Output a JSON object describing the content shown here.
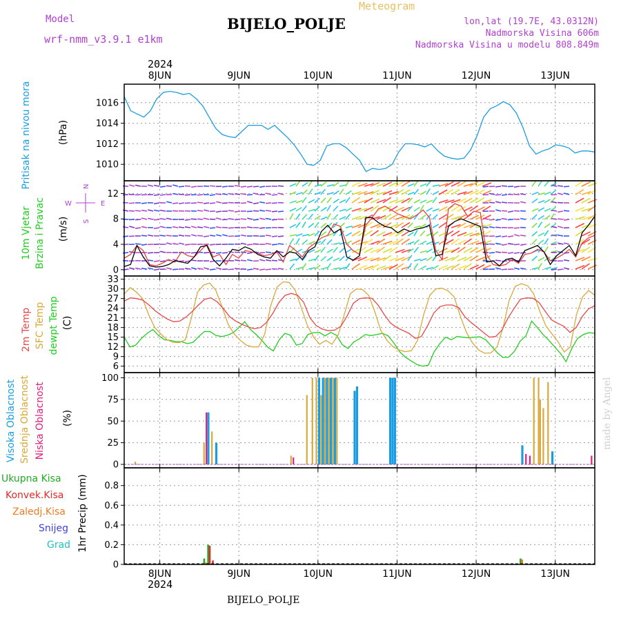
{
  "header": {
    "model_label": "Model",
    "model_name": "wrf-nmm_v3.9.1  e1km",
    "meteogram": "Meteogram",
    "station": "BIJELO_POLJE",
    "lonlat": "lon,lat (19.7E, 43.0312N)",
    "altitude": "Nadmorska Visina 606m",
    "model_altitude": "Nadmorska Visina u modelu 808.849m",
    "year": "2024"
  },
  "footer": {
    "station": "BIJELO_POLJE",
    "year": "2024",
    "credit": "made by Angel"
  },
  "days": [
    "8JUN",
    "9JUN",
    "10JUN",
    "11JUN",
    "12JUN",
    "13JUN"
  ],
  "colors": {
    "pressure": "#1a9de0",
    "temp": "#e84848",
    "sfc": "#d8a83a",
    "dew": "#22cc22",
    "high": "#1a9de0",
    "mid": "#d8a83a",
    "low": "#e0207a",
    "total": "#22aa22",
    "conv": "#e02a2a",
    "strat": "#f07b20",
    "snow": "#4040e0",
    "grad": "#20c0c0",
    "wind_title": "#22cc22",
    "wind_dir": "#b040d0"
  },
  "chart_data": [
    {
      "type": "line",
      "ylabel": [
        "Pritisak na nivou mora",
        "(hPa)"
      ],
      "yticks": [
        1010,
        1012,
        1014,
        1016
      ],
      "ylim": [
        1008.4,
        1017.8
      ],
      "x_start_day": 7.55,
      "x_end_day": 13.5,
      "series": [
        {
          "values": [
            1016.6,
            1015.2,
            1014.9,
            1014.6,
            1015.2,
            1016.4,
            1017.0,
            1017.1,
            1017.0,
            1016.8,
            1016.9,
            1016.4,
            1015.7,
            1014.6,
            1013.5,
            1012.9,
            1012.7,
            1012.6,
            1013.2,
            1013.8,
            1013.8,
            1013.8,
            1013.4,
            1013.8,
            1013.2,
            1012.6,
            1011.9,
            1011.0,
            1010.0,
            1009.9,
            1010.4,
            1011.8,
            1012.0,
            1012.0,
            1011.6,
            1011.0,
            1010.4,
            1009.3,
            1009.6,
            1009.5,
            1009.6,
            1010.0,
            1011.2,
            1012.0,
            1012.0,
            1011.9,
            1011.7,
            1012.0,
            1011.3,
            1010.8,
            1010.6,
            1010.5,
            1010.6,
            1011.4,
            1012.8,
            1014.6,
            1015.4,
            1015.7,
            1016.1,
            1015.8,
            1015.0,
            1013.6,
            1011.8,
            1011.0,
            1011.3,
            1011.5,
            1011.9,
            1011.8,
            1011.6,
            1011.1,
            1011.3,
            1011.3,
            1011.2
          ]
        }
      ]
    },
    {
      "type": "line",
      "ylabel": [
        "10m Vjetar",
        "Brzina i Pravac",
        "(m/s)"
      ],
      "yticks": [
        0,
        4,
        8,
        12
      ],
      "ylim": [
        -1,
        14
      ],
      "compass": {
        "n": "N",
        "s": "S",
        "e": "E",
        "w": "W"
      },
      "series": [
        {
          "values": [
            0.5,
            0.8,
            3.8,
            2.0,
            0.6,
            0.4,
            0.5,
            0.8,
            1.4,
            1.2,
            1.0,
            2.0,
            3.6,
            3.8,
            1.6,
            0.6,
            1.8,
            3.2,
            3.0,
            3.6,
            3.2,
            2.4,
            2.0,
            1.8,
            3.0,
            2.0,
            2.8,
            2.6,
            1.6,
            3.0,
            3.6,
            6.0,
            7.0,
            5.8,
            6.4,
            2.0,
            1.5,
            2.2,
            8.2,
            8.2,
            7.4,
            6.8,
            6.6,
            5.8,
            6.4,
            6.0,
            6.4,
            6.6,
            7.0,
            2.2,
            2.4,
            6.8,
            7.6,
            8.0,
            7.6,
            7.2,
            6.8,
            1.2,
            1.4,
            0.6,
            1.6,
            1.8,
            1.2,
            3.0,
            3.4,
            3.8,
            2.8,
            0.8,
            2.2,
            3.0,
            3.8,
            2.2,
            5.8,
            7.0,
            8.4
          ]
        },
        {
          "values": [
            1.8,
            2.4,
            3.8,
            3.0,
            0.8,
            0.6,
            1.0,
            1.6,
            1.2,
            2.8,
            2.2,
            2.0,
            3.0,
            4.0,
            2.0,
            2.4,
            0.8,
            2.4,
            1.8,
            3.0,
            2.8,
            2.6,
            2.2,
            2.4,
            2.8,
            1.2,
            3.8,
            3.0,
            2.0,
            3.4,
            4.2,
            5.0,
            5.4,
            7.2,
            6.8,
            4.0,
            3.0,
            2.4,
            7.0,
            8.2,
            9.6,
            10.0,
            9.4,
            8.8,
            8.4,
            8.0,
            8.6,
            9.4,
            8.2,
            3.0,
            1.6,
            9.6,
            10.4,
            10.0,
            8.4,
            9.2,
            9.0,
            2.4,
            0.8,
            0.6,
            0.8,
            1.6,
            1.0,
            2.4,
            2.6,
            3.2,
            2.8,
            1.4,
            1.8,
            2.4,
            3.2,
            2.0,
            4.2,
            5.0,
            5.4
          ]
        }
      ]
    },
    {
      "type": "line",
      "ylabel": [
        "2m Temp",
        "SFC Temp",
        "dewpt Temp",
        "(C)"
      ],
      "yticks": [
        6,
        9,
        12,
        15,
        18,
        21,
        24,
        27,
        30,
        33
      ],
      "ylim": [
        4,
        34
      ],
      "series": [
        {
          "name": "2m Temp",
          "values": [
            26.2,
            27.2,
            27.0,
            26.5,
            25.0,
            23.2,
            21.8,
            20.6,
            19.8,
            20.0,
            21.3,
            23.0,
            25.0,
            26.8,
            27.2,
            26.0,
            23.9,
            21.4,
            20.0,
            19.0,
            18.2,
            17.6,
            18.0,
            19.6,
            22.4,
            25.8,
            28.0,
            28.6,
            28.0,
            25.8,
            21.0,
            18.6,
            17.5,
            17.0,
            17.2,
            18.4,
            21.6,
            25.5,
            27.0,
            27.2,
            27.1,
            25.0,
            22.0,
            19.4,
            18.0,
            17.1,
            16.2,
            14.6,
            15.2,
            18.6,
            22.5,
            24.5,
            25.0,
            25.0,
            24.2,
            21.4,
            19.6,
            18.1,
            16.5,
            15.0,
            15.2,
            17.2,
            21.0,
            24.0,
            26.8,
            27.2,
            27.1,
            25.8,
            23.0,
            20.4,
            19.3,
            18.4,
            16.5,
            18.0,
            21.5,
            23.8,
            24.8
          ]
        },
        {
          "name": "SFC Temp",
          "values": [
            28.4,
            30.4,
            29.0,
            27.0,
            22.0,
            18.0,
            16.0,
            14.2,
            13.4,
            13.3,
            14.2,
            21.0,
            29.0,
            31.2,
            31.8,
            29.5,
            24.5,
            19.0,
            16.0,
            14.0,
            12.5,
            12.0,
            12.0,
            16.0,
            25.0,
            30.5,
            32.2,
            32.0,
            29.5,
            24.0,
            18.5,
            15.0,
            12.8,
            14.0,
            12.8,
            15.6,
            22.0,
            28.5,
            30.0,
            29.8,
            28.0,
            23.0,
            17.0,
            14.0,
            12.0,
            11.0,
            10.5,
            10.8,
            14.0,
            22.0,
            28.0,
            30.0,
            30.2,
            29.4,
            27.5,
            21.5,
            16.5,
            13.2,
            11.0,
            10.0,
            10.1,
            12.0,
            18.0,
            26.5,
            30.8,
            31.6,
            31.0,
            28.5,
            23.0,
            18.5,
            16.0,
            13.5,
            10.4,
            12.0,
            22.0,
            27.5,
            29.5,
            28.0
          ]
        },
        {
          "name": "dewpt Temp",
          "values": [
            15.0,
            12.0,
            12.5,
            14.6,
            16.2,
            17.4,
            15.5,
            14.2,
            14.0,
            13.6,
            13.6,
            13.0,
            13.4,
            15.2,
            16.8,
            16.7,
            15.5,
            15.2,
            15.6,
            16.4,
            18.0,
            19.8,
            17.4,
            15.8,
            14.0,
            11.9,
            10.7,
            14.2,
            16.2,
            15.6,
            12.5,
            13.0,
            15.8,
            16.4,
            16.5,
            15.4,
            16.5,
            15.6,
            12.7,
            11.5,
            13.5,
            14.5,
            15.8,
            15.5,
            15.8,
            16.2,
            15.4,
            13.2,
            10.5,
            8.8,
            7.6,
            6.5,
            6.0,
            6.3,
            10.4,
            13.0,
            15.0,
            14.2,
            15.2,
            15.0,
            14.8,
            15.0,
            15.1,
            14.2,
            12.2,
            10.2,
            8.7,
            8.8,
            10.6,
            13.8,
            15.4,
            20.0,
            18.0,
            15.8,
            14.0,
            12.0,
            10.0,
            7.4,
            11.5,
            14.6,
            15.8,
            16.4,
            16.2
          ]
        }
      ]
    },
    {
      "type": "bar",
      "ylabel": [
        "Visoka Oblacnost",
        "Srednja Oblacnost",
        "Niska Oblacnost",
        "(%)"
      ],
      "yticks": [
        0,
        25,
        50,
        75,
        100
      ],
      "ylim": [
        -4,
        106
      ],
      "series": [
        {
          "name": "Visoka Oblacnost",
          "bars": [
            [
              8.6,
              60
            ],
            [
              8.7,
              25
            ],
            [
              10.0,
              100
            ],
            [
              10.05,
              100
            ],
            [
              10.1,
              100
            ],
            [
              10.15,
              100
            ],
            [
              10.2,
              100
            ],
            [
              10.45,
              85
            ],
            [
              10.48,
              90
            ],
            [
              10.9,
              100
            ],
            [
              10.93,
              100
            ],
            [
              10.96,
              100
            ],
            [
              12.57,
              22
            ],
            [
              12.95,
              15
            ]
          ]
        },
        {
          "name": "Srednja Oblacnost",
          "bars": [
            [
              7.68,
              3
            ],
            [
              8.55,
              25
            ],
            [
              8.65,
              38
            ],
            [
              9.65,
              10
            ],
            [
              9.85,
              80
            ],
            [
              9.92,
              100
            ],
            [
              9.97,
              100
            ],
            [
              10.03,
              80
            ],
            [
              10.08,
              100
            ],
            [
              10.13,
              100
            ],
            [
              10.18,
              100
            ],
            [
              10.23,
              100
            ],
            [
              12.72,
              100
            ],
            [
              12.78,
              100
            ],
            [
              12.8,
              75
            ],
            [
              12.84,
              65
            ],
            [
              12.9,
              95
            ]
          ]
        },
        {
          "name": "Niska Oblacnost",
          "bars": [
            [
              8.58,
              60
            ],
            [
              9.68,
              8
            ],
            [
              12.62,
              12
            ],
            [
              12.67,
              10
            ],
            [
              13.45,
              10
            ]
          ]
        }
      ]
    },
    {
      "type": "bar",
      "ylabel": [
        "1hr Precip (mm)"
      ],
      "yticks": [
        0,
        0.2,
        0.4,
        0.6,
        0.8
      ],
      "ylim": [
        0,
        0.98
      ],
      "legend": [
        "Ukupna Kisa",
        "Konvek.Kisa",
        "Zaledj.Kisa",
        "Snijeg",
        "Grad"
      ],
      "series": [
        {
          "name": "Ukupna Kisa",
          "bars": [
            [
              8.55,
              0.06
            ],
            [
              8.6,
              0.2
            ],
            [
              12.55,
              0.06
            ]
          ]
        },
        {
          "name": "Konvek.Kisa",
          "bars": [
            [
              8.62,
              0.19
            ],
            [
              8.66,
              0.04
            ]
          ]
        },
        {
          "name": "Zaledj.Kisa",
          "bars": [
            [
              8.57,
              0.02
            ],
            [
              12.57,
              0.05
            ]
          ]
        }
      ]
    }
  ]
}
